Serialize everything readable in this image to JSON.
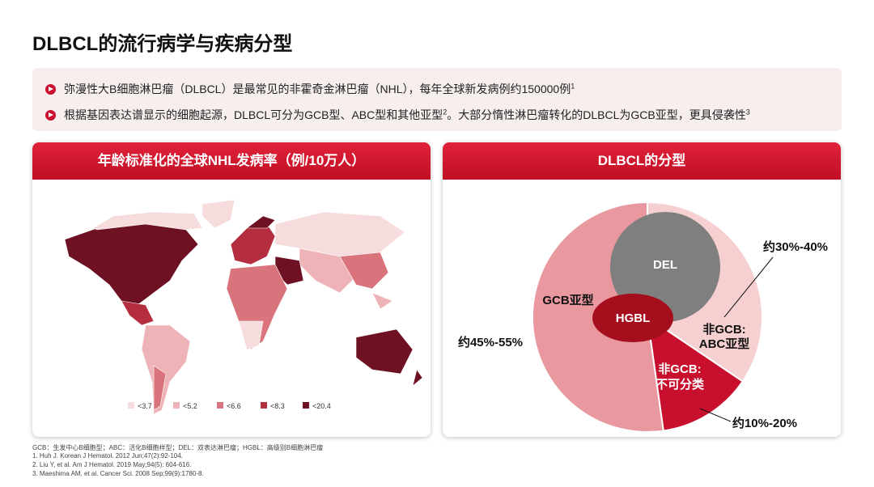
{
  "title": "DLBCL的流行病学与疾病分型",
  "bullets": [
    [
      "弥漫性大B细胞淋巴瘤（DLBCL）是最常见的非霍奇金淋巴瘤（NHL），每年全球新发病例约150000例",
      "1"
    ],
    [
      "根据基因表达谱显示的细胞起源，DLBCL可分为GCB型、ABC型和其他亚型",
      "2",
      "。大部分惰性淋巴瘤转化的DLBCL为GCB亚型，更具侵袭性",
      "3"
    ]
  ],
  "left_panel": {
    "title": "年龄标准化的全球NHL发病率（例/10万人）",
    "legend": [
      "<3.7",
      "<5.2",
      "<6.6",
      "<8.3",
      "<20.4"
    ]
  },
  "right_panel": {
    "title": "DLBCL的分型",
    "del": "DEL",
    "hgbl": "HGBL",
    "gcb": "GCB亚型",
    "gcb_range": "约45%-55%",
    "abc": [
      "非GCB:",
      "ABC亚型"
    ],
    "abc_range": "约30%-40%",
    "unclassified": [
      "非GCB:",
      "不可分类"
    ],
    "unclassified_range": "约10%-20%"
  },
  "footnotes": [
    "GCB：生发中心B细胞型；ABC：活化B细胞样型；DEL：双表达淋巴瘤；HGBL：高级别B细胞淋巴瘤",
    "1. Huh J. Korean J Hematol. 2012 Jun;47(2):92-104.",
    "2. Liu Y, et al. Am J Hematol. 2019 May;94(5): 604-616.",
    "3. Maeshima AM, et al. Cancer Sci. 2008 Sep;99(9):1780-8."
  ]
}
